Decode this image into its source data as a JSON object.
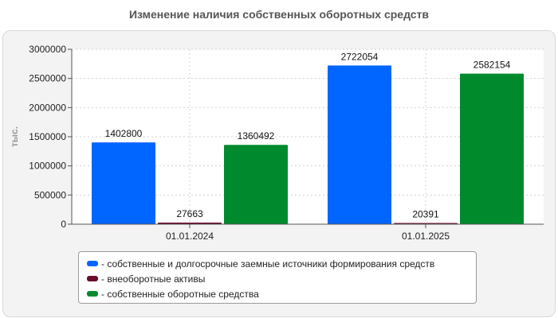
{
  "chart_data": {
    "type": "bar",
    "title": "Изменение наличия собственных оборотных средств",
    "ylabel": "тыс.",
    "xlabel": "",
    "categories": [
      "01.01.2024",
      "01.01.2025"
    ],
    "ylim": [
      0,
      3000000
    ],
    "yticks": [
      "0",
      "500000",
      "1000000",
      "1500000",
      "2000000",
      "2500000",
      "3000000"
    ],
    "grid": true,
    "legend_position": "bottom",
    "series": [
      {
        "name": "собственные и долгосрочные заемные источники формирования средств",
        "color": "#0066ff",
        "values": [
          1402800,
          2722054
        ],
        "labels": [
          "1402800",
          "2722054"
        ]
      },
      {
        "name": "внеоборотные активы",
        "color": "#6b0b2e",
        "values": [
          27663,
          20391
        ],
        "labels": [
          "27663",
          "20391"
        ]
      },
      {
        "name": "собственные оборотные средства",
        "color": "#008a2e",
        "values": [
          1360492,
          2582154
        ],
        "labels": [
          "1360492",
          "2582154"
        ]
      }
    ]
  }
}
